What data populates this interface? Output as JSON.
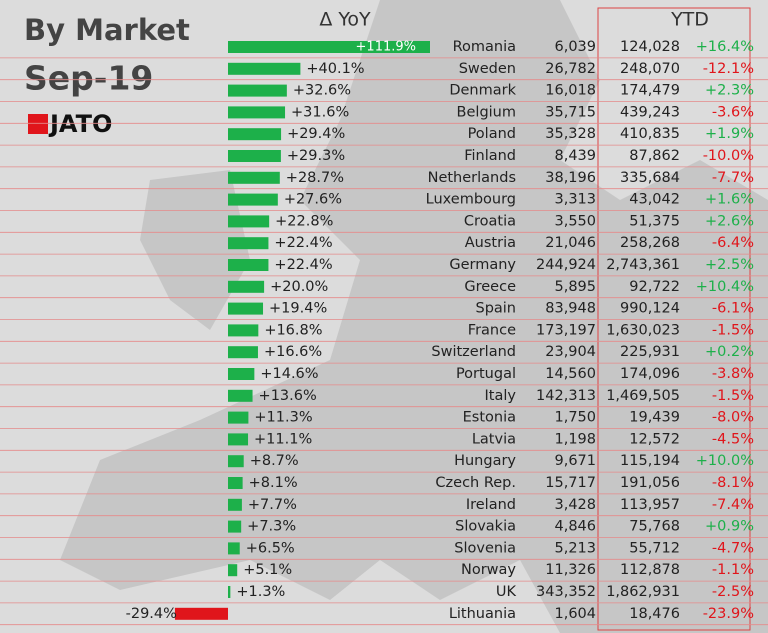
{
  "chart_data": {
    "type": "bar",
    "title": "By Market",
    "subtitle": "Sep-19",
    "logo": "JATO",
    "column_headers": [
      "Δ YoY",
      "YTD"
    ],
    "categories": [
      "Romania",
      "Sweden",
      "Denmark",
      "Belgium",
      "Poland",
      "Finland",
      "Netherlands",
      "Luxembourg",
      "Croatia",
      "Austria",
      "Germany",
      "Greece",
      "Spain",
      "France",
      "Switzerland",
      "Portugal",
      "Italy",
      "Estonia",
      "Latvia",
      "Hungary",
      "Czech Rep.",
      "Ireland",
      "Slovakia",
      "Slovenia",
      "Norway",
      "UK",
      "Lithuania"
    ],
    "series": [
      {
        "color": "#1db04a",
        "negative_color": "#e0151b",
        "values": [
          111.9,
          40.1,
          32.6,
          31.6,
          29.4,
          29.3,
          28.7,
          27.6,
          22.8,
          22.4,
          22.4,
          20.0,
          19.4,
          16.8,
          16.6,
          14.6,
          13.6,
          11.3,
          11.1,
          8.7,
          8.1,
          7.7,
          7.3,
          6.5,
          5.1,
          1.3,
          -29.4
        ],
        "value_labels": [
          "+111.9%",
          "+40.1%",
          "+32.6%",
          "+31.6%",
          "+29.4%",
          "+29.3%",
          "+28.7%",
          "+27.6%",
          "+22.8%",
          "+22.4%",
          "+22.4%",
          "+20.0%",
          "+19.4%",
          "+16.8%",
          "+16.6%",
          "+14.6%",
          "+13.6%",
          "+11.3%",
          "+11.1%",
          "+8.7%",
          "+8.1%",
          "+7.7%",
          "+7.3%",
          "+6.5%",
          "+5.1%",
          "+1.3%",
          "-29.4%"
        ]
      }
    ],
    "volumes": [
      "6,039",
      "26,782",
      "16,018",
      "35,715",
      "35,328",
      "8,439",
      "38,196",
      "3,313",
      "3,550",
      "21,046",
      "244,924",
      "5,895",
      "83,948",
      "173,197",
      "23,904",
      "14,560",
      "142,313",
      "1,750",
      "1,198",
      "9,671",
      "15,717",
      "3,428",
      "4,846",
      "5,213",
      "11,326",
      "343,352",
      "1,604"
    ],
    "ytd": [
      "124,028",
      "248,070",
      "174,479",
      "439,243",
      "410,835",
      "87,862",
      "335,684",
      "43,042",
      "51,375",
      "258,268",
      "2,743,361",
      "92,722",
      "990,124",
      "1,630,023",
      "225,931",
      "174,096",
      "1,469,505",
      "19,439",
      "12,572",
      "115,194",
      "191,056",
      "113,957",
      "75,768",
      "55,712",
      "112,878",
      "1,862,931",
      "18,476"
    ],
    "ytd_change": [
      "+16.4%",
      "-12.1%",
      "+2.3%",
      "-3.6%",
      "+1.9%",
      "-10.0%",
      "-7.7%",
      "+1.6%",
      "+2.6%",
      "-6.4%",
      "+2.5%",
      "+10.4%",
      "-6.1%",
      "-1.5%",
      "+0.2%",
      "-3.8%",
      "-1.5%",
      "-8.0%",
      "-4.5%",
      "+10.0%",
      "-8.1%",
      "-7.4%",
      "+0.9%",
      "-4.7%",
      "-1.1%",
      "-2.5%",
      "-23.9%"
    ]
  }
}
